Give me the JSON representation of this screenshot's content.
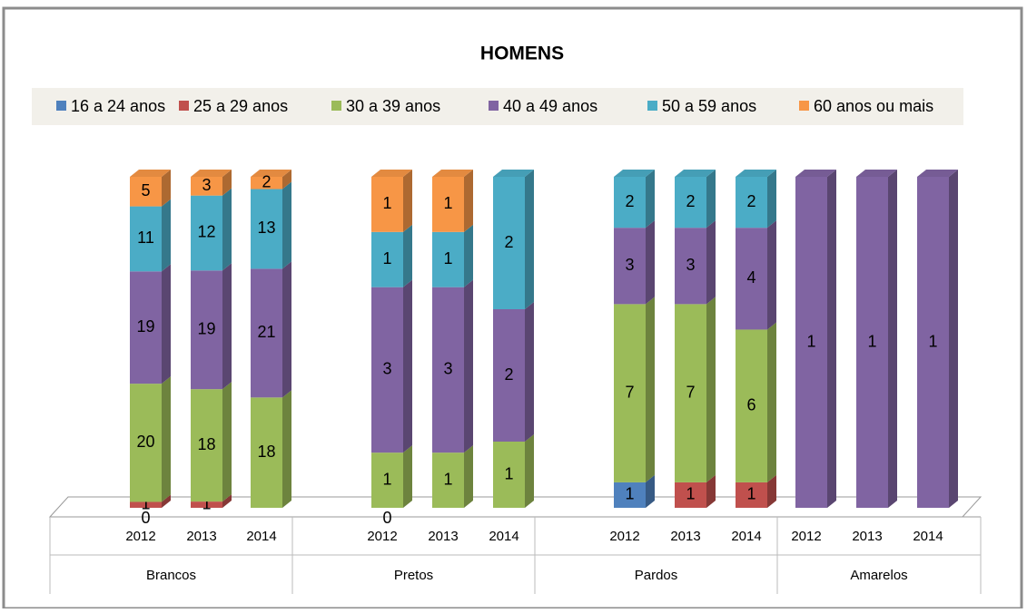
{
  "chart_data": {
    "type": "bar",
    "stacked": "percent",
    "title": "HOMENS",
    "categories": [
      "2012",
      "2013",
      "2014",
      "2012",
      "2013",
      "2014",
      "2012",
      "2013",
      "2014",
      "2012",
      "2013",
      "2014"
    ],
    "groups": [
      "Brancos",
      "Pretos",
      "Pardos",
      "Amarelos"
    ],
    "series": [
      {
        "name": "16 a 24 anos",
        "color": "#4f81bd",
        "values": [
          0,
          null,
          null,
          0,
          null,
          null,
          1,
          null,
          null,
          null,
          null,
          null
        ]
      },
      {
        "name": "25 a 29 anos",
        "color": "#c0504d",
        "values": [
          1,
          1,
          null,
          null,
          null,
          null,
          null,
          1,
          1,
          null,
          null,
          null
        ]
      },
      {
        "name": "30 a 39 anos",
        "color": "#9bbb59",
        "values": [
          20,
          18,
          18,
          1,
          1,
          1,
          7,
          7,
          6,
          null,
          null,
          null
        ]
      },
      {
        "name": "40 a 49 anos",
        "color": "#8064a2",
        "values": [
          19,
          19,
          21,
          3,
          3,
          2,
          3,
          3,
          4,
          1,
          1,
          1
        ]
      },
      {
        "name": "50 a 59 anos",
        "color": "#4bacc6",
        "values": [
          11,
          12,
          13,
          1,
          1,
          2,
          2,
          2,
          2,
          null,
          null,
          null
        ]
      },
      {
        "name": "60 anos ou mais",
        "color": "#f79646",
        "values": [
          5,
          3,
          2,
          1,
          1,
          null,
          null,
          null,
          null,
          null,
          null,
          null
        ]
      }
    ],
    "legend": "top"
  }
}
